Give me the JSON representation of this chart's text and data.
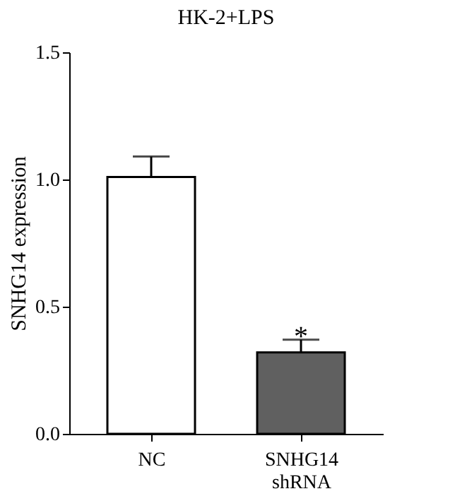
{
  "chart_data": {
    "type": "bar",
    "title": "HK-2+LPS",
    "ylabel": "SNHG14 expression",
    "categories": [
      "NC",
      "SNHG14 shRNA"
    ],
    "values": [
      1.01,
      0.32
    ],
    "colors": [
      "#ffffff",
      "#606060"
    ],
    "errors": [
      [
        1.01,
        1.09
      ],
      [
        0.32,
        0.37
      ]
    ],
    "ylim": [
      0,
      1.5
    ],
    "yticks": [
      {
        "value": 0,
        "label": "0.0"
      },
      {
        "value": 0.5,
        "label": "0.5"
      },
      {
        "value": 1,
        "label": "1.0"
      },
      {
        "value": 1.5,
        "label": "1.5"
      }
    ],
    "annotations": [
      {
        "text": "*",
        "x": "SNHG14 shRNA",
        "y": 0.38
      }
    ],
    "grid": false
  }
}
